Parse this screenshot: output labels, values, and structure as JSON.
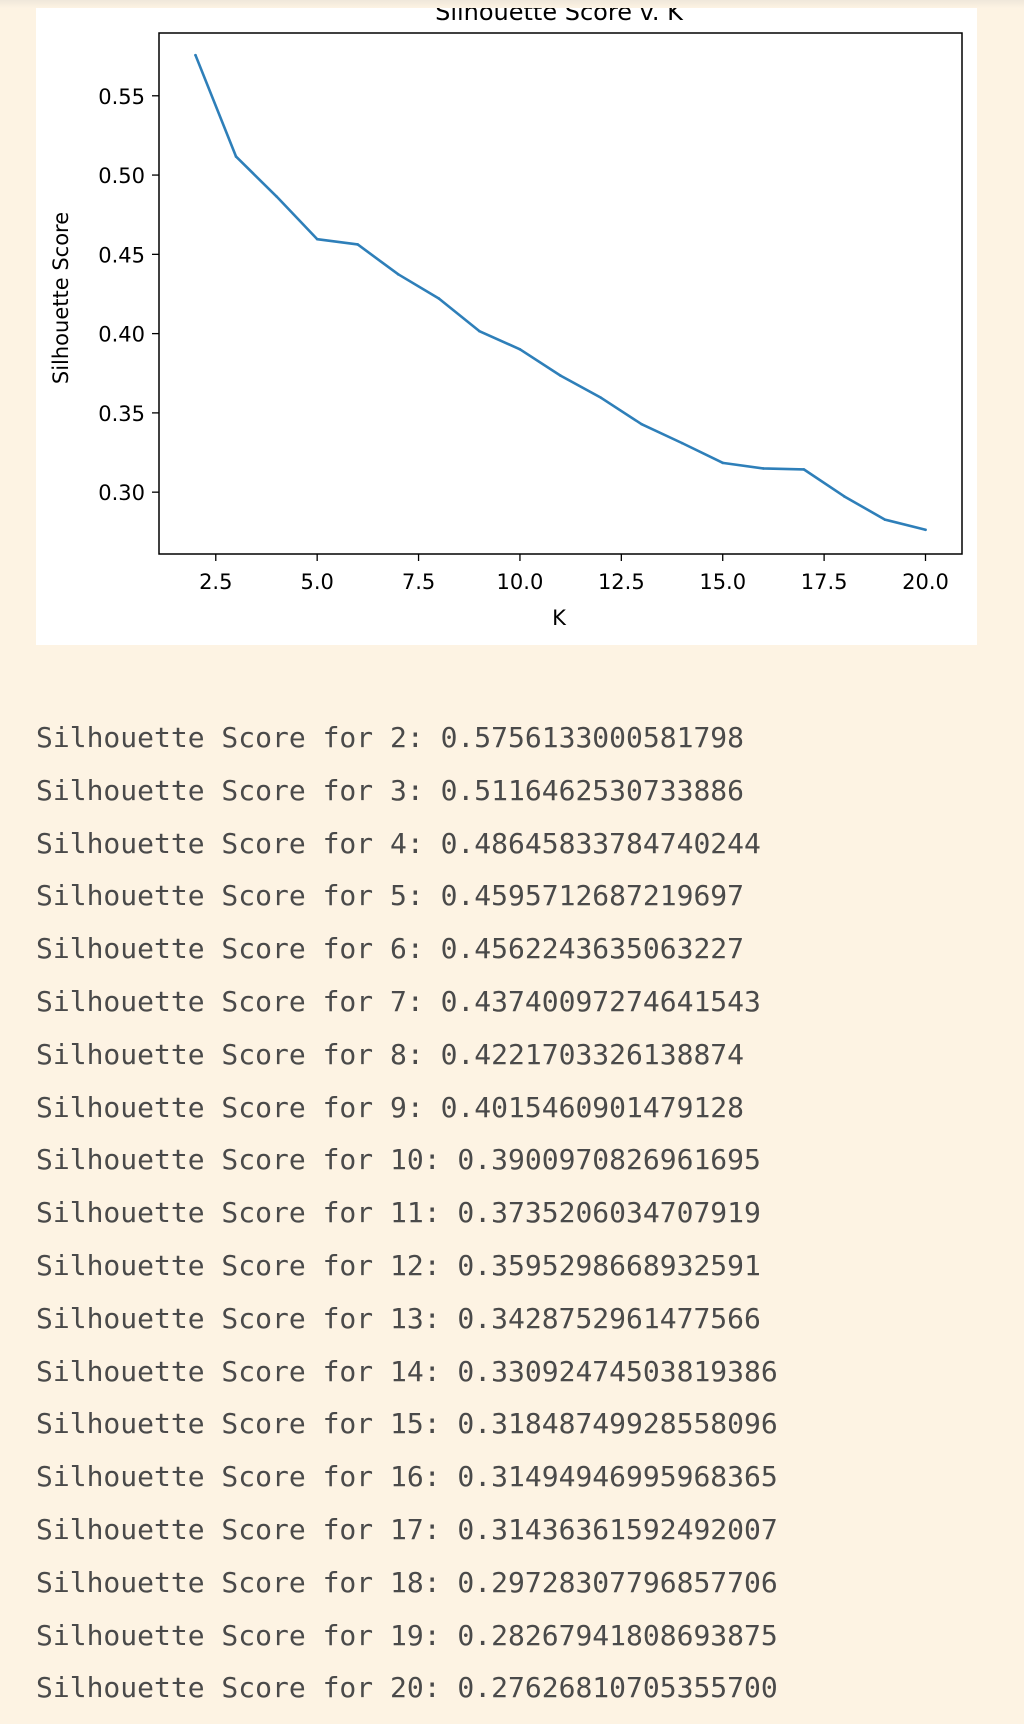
{
  "chart_data": {
    "type": "line",
    "title": "Silhouette Score v. K",
    "xlabel": "K",
    "ylabel": "Silhouette Score",
    "xlim": [
      1.1,
      20.9
    ],
    "ylim": [
      0.261,
      0.5896
    ],
    "xticks": [
      2.5,
      5.0,
      7.5,
      10.0,
      12.5,
      15.0,
      17.5,
      20.0
    ],
    "xtick_labels": [
      "2.5",
      "5.0",
      "7.5",
      "10.0",
      "12.5",
      "15.0",
      "17.5",
      "20.0"
    ],
    "yticks": [
      0.3,
      0.35,
      0.4,
      0.45,
      0.5,
      0.55
    ],
    "ytick_labels": [
      "0.30",
      "0.35",
      "0.40",
      "0.45",
      "0.50",
      "0.55"
    ],
    "grid": false,
    "color": "#2e7fb9",
    "x": [
      2,
      3,
      4,
      5,
      6,
      7,
      8,
      9,
      10,
      11,
      12,
      13,
      14,
      15,
      16,
      17,
      18,
      19,
      20
    ],
    "y": [
      0.5756133000581798,
      0.5116462530733886,
      0.48645833784740244,
      0.4595712687219697,
      0.4562243635063227,
      0.43740097274641543,
      0.4221703326138874,
      0.4015460901479128,
      0.3900970826961695,
      0.3735206034707919,
      0.3595298668932591,
      0.3428752961477566,
      0.33092474503819386,
      0.31848749928558096,
      0.31494946995968365,
      0.31436361592492007,
      0.29728307796857706,
      0.28267941808693875,
      0.276268107053557
    ]
  },
  "output_lines": [
    "Silhouette Score for 2: 0.5756133000581798",
    "Silhouette Score for 3: 0.5116462530733886",
    "Silhouette Score for 4: 0.48645833784740244",
    "Silhouette Score for 5: 0.4595712687219697",
    "Silhouette Score for 6: 0.4562243635063227",
    "Silhouette Score for 7: 0.43740097274641543",
    "Silhouette Score for 8: 0.4221703326138874",
    "Silhouette Score for 9: 0.4015460901479128",
    "Silhouette Score for 10: 0.3900970826961695",
    "Silhouette Score for 11: 0.3735206034707919",
    "Silhouette Score for 12: 0.3595298668932591",
    "Silhouette Score for 13: 0.3428752961477566",
    "Silhouette Score for 14: 0.33092474503819386",
    "Silhouette Score for 15: 0.31848749928558096",
    "Silhouette Score for 16: 0.31494946995968365",
    "Silhouette Score for 17: 0.31436361592492007",
    "Silhouette Score for 18: 0.29728307796857706",
    "Silhouette Score for 19: 0.28267941808693875",
    "Silhouette Score for 20: 0.27626810705355700"
  ]
}
